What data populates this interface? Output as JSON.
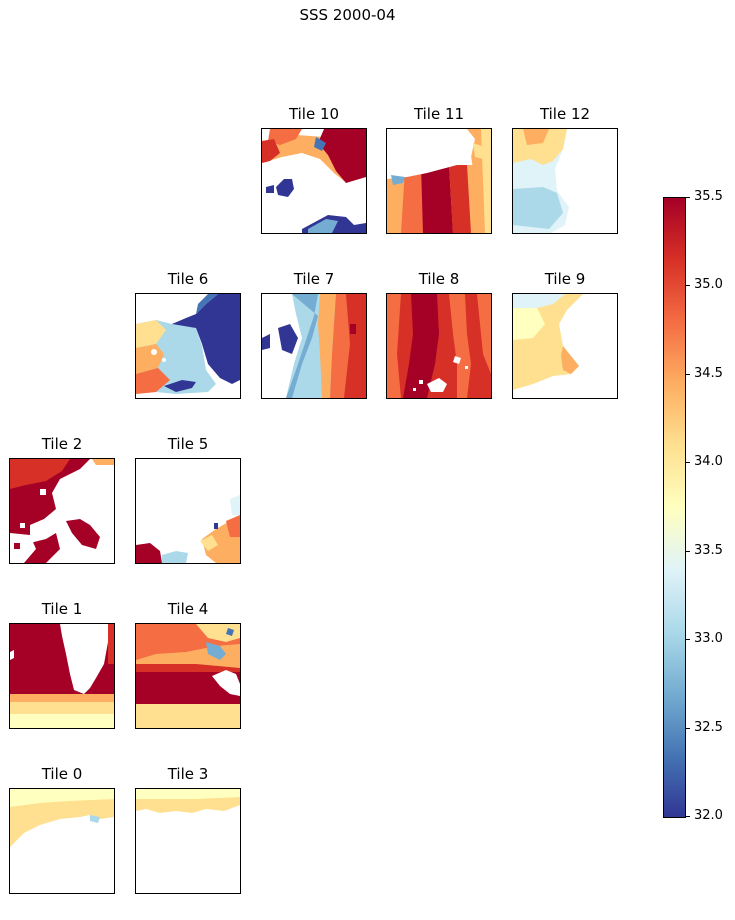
{
  "figure": {
    "title": "SSS 2000-04"
  },
  "chart_data": {
    "type": "heatmap",
    "title": "SSS 2000-04",
    "colormap": "RdYlBu_r",
    "colors": [
      "#313695",
      "#4575b4",
      "#74add1",
      "#abd9e9",
      "#e0f3f8",
      "#ffffbf",
      "#fee090",
      "#fdae61",
      "#f46d43",
      "#d73027",
      "#a50026"
    ],
    "land_color": "#ffffff",
    "clim": [
      32.0,
      35.5
    ],
    "colorbar": {
      "orientation": "vertical",
      "ticks": [
        32.0,
        32.5,
        33.0,
        33.5,
        34.0,
        34.5,
        35.0,
        35.5
      ],
      "tick_labels": [
        "32.0",
        "32.5",
        "33.0",
        "33.5",
        "34.0",
        "34.5",
        "35.0",
        "35.5"
      ]
    },
    "tiles": [
      {
        "id": 0,
        "title": "Tile 0",
        "approx_mean_sss": 33.9
      },
      {
        "id": 1,
        "title": "Tile 1",
        "approx_mean_sss": 35.1
      },
      {
        "id": 2,
        "title": "Tile 2",
        "approx_mean_sss": 35.4
      },
      {
        "id": 3,
        "title": "Tile 3",
        "approx_mean_sss": 34.0
      },
      {
        "id": 4,
        "title": "Tile 4",
        "approx_mean_sss": 35.0
      },
      {
        "id": 5,
        "title": "Tile 5",
        "approx_mean_sss": 34.8
      },
      {
        "id": 6,
        "title": "Tile 6",
        "approx_mean_sss": 33.6
      },
      {
        "id": 7,
        "title": "Tile 7",
        "approx_mean_sss": 34.3
      },
      {
        "id": 8,
        "title": "Tile 8",
        "approx_mean_sss": 35.3
      },
      {
        "id": 9,
        "title": "Tile 9",
        "approx_mean_sss": 34.0
      },
      {
        "id": 10,
        "title": "Tile 10",
        "approx_mean_sss": 34.2
      },
      {
        "id": 11,
        "title": "Tile 11",
        "approx_mean_sss": 34.9
      },
      {
        "id": 12,
        "title": "Tile 12",
        "approx_mean_sss": 33.8
      }
    ]
  }
}
